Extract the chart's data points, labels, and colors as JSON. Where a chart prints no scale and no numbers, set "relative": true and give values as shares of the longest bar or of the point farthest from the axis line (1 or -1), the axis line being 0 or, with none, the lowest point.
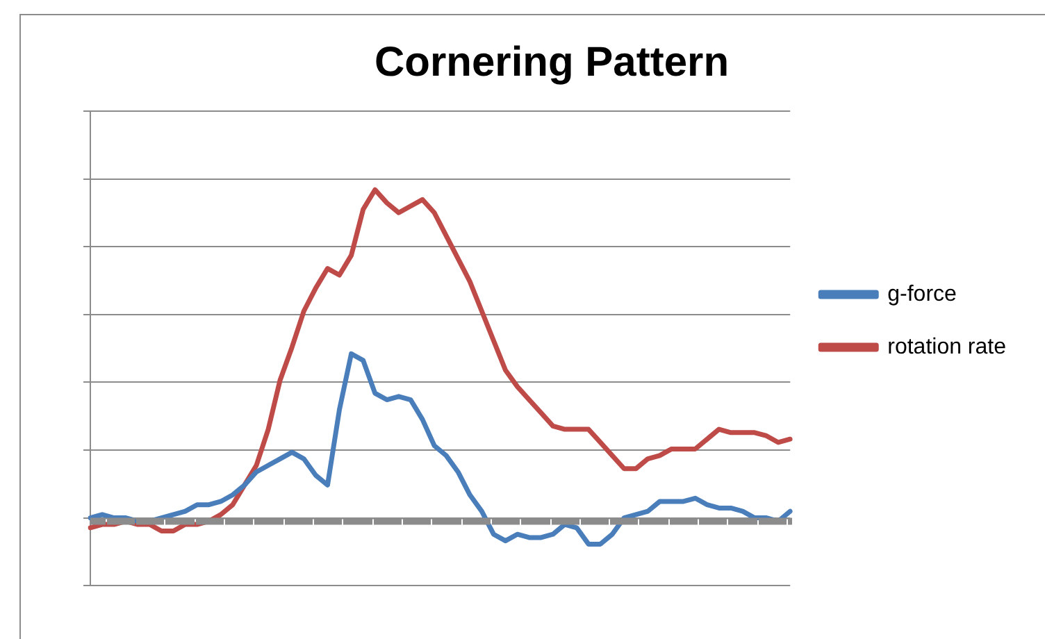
{
  "chart_data": {
    "type": "line",
    "title": "Cornering Pattern",
    "relative": true,
    "grid": "y",
    "legend": "right",
    "marker": "none",
    "line_style": "solid",
    "categories": [
      null,
      null,
      null,
      null,
      null,
      null,
      null,
      null,
      null,
      null,
      null,
      null,
      null,
      null,
      null,
      null,
      null,
      null,
      null,
      null,
      null,
      null,
      null,
      null,
      null,
      null,
      null,
      null,
      null,
      null,
      null,
      null,
      null,
      null,
      null,
      null,
      null,
      null,
      null,
      null,
      null,
      null,
      null,
      null,
      null,
      null,
      null,
      null,
      null,
      null,
      null,
      null,
      null,
      null,
      null,
      null,
      null,
      null,
      null,
      null
    ],
    "series": [
      {
        "name": "g-force",
        "color": "#4a7ebb",
        "values": [
          0,
          0.01,
          0,
          0,
          -0.01,
          -0.01,
          0,
          0.01,
          0.02,
          0.04,
          0.04,
          0.05,
          0.07,
          0.1,
          0.14,
          0.16,
          0.18,
          0.2,
          0.18,
          0.13,
          0.1,
          0.33,
          0.5,
          0.48,
          0.38,
          0.36,
          0.37,
          0.36,
          0.3,
          0.22,
          0.19,
          0.14,
          0.07,
          0.02,
          -0.05,
          -0.07,
          -0.05,
          -0.06,
          -0.06,
          -0.05,
          -0.02,
          -0.03,
          -0.08,
          -0.08,
          -0.05,
          0,
          0.01,
          0.02,
          0.05,
          0.05,
          0.05,
          0.06,
          0.04,
          0.03,
          0.03,
          0.02,
          0,
          0,
          -0.01,
          0.02
        ]
      },
      {
        "name": "rotation rate",
        "color": "#be4b48",
        "values": [
          -0.03,
          -0.02,
          -0.02,
          -0.01,
          -0.02,
          -0.02,
          -0.04,
          -0.04,
          -0.02,
          -0.02,
          -0.01,
          0.01,
          0.04,
          0.1,
          0.16,
          0.27,
          0.42,
          0.52,
          0.63,
          0.7,
          0.76,
          0.74,
          0.8,
          0.94,
          1,
          0.96,
          0.93,
          0.95,
          0.97,
          0.93,
          0.86,
          0.79,
          0.72,
          0.63,
          0.54,
          0.45,
          0.4,
          0.36,
          0.32,
          0.28,
          0.27,
          0.27,
          0.27,
          0.23,
          0.19,
          0.15,
          0.15,
          0.18,
          0.19,
          0.21,
          0.21,
          0.21,
          0.24,
          0.27,
          0.26,
          0.26,
          0.26,
          0.25,
          0.23,
          0.24
        ]
      }
    ]
  }
}
